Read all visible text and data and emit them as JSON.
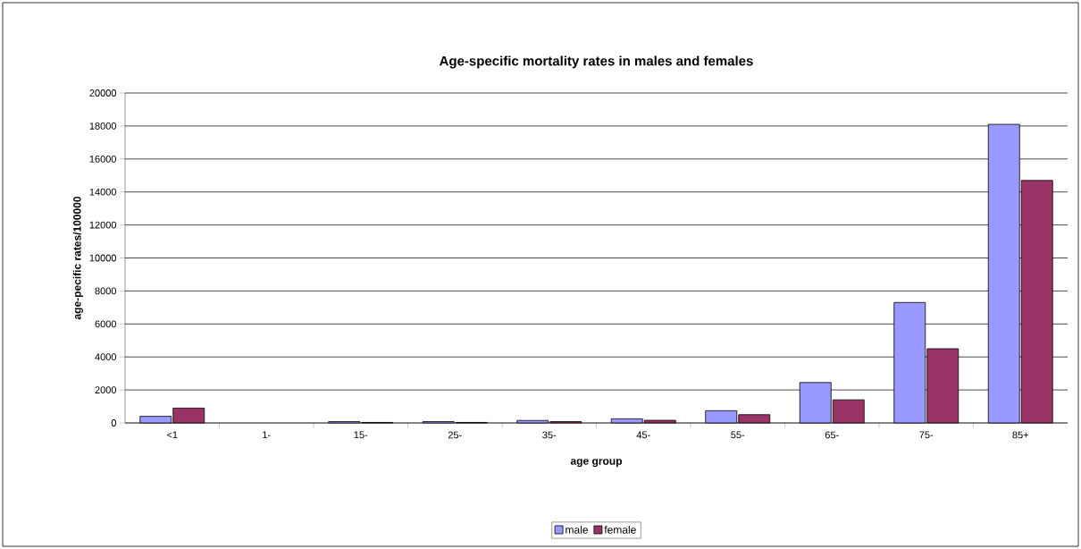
{
  "chart_data": {
    "type": "bar",
    "title": "Age-specific mortality rates in males and females",
    "xlabel": "age group",
    "ylabel": "age-pecific rates/100000",
    "categories": [
      "<1",
      "1-",
      "15-",
      "25-",
      "35-",
      "45-",
      "55-",
      "65-",
      "75-",
      "85+"
    ],
    "series": [
      {
        "name": "male",
        "color": "#9999ff",
        "values": [
          400,
          null,
          80,
          80,
          150,
          250,
          740,
          2450,
          7300,
          18100
        ]
      },
      {
        "name": "female",
        "color": "#993366",
        "values": [
          900,
          null,
          30,
          30,
          80,
          160,
          500,
          1400,
          4500,
          14700
        ]
      }
    ],
    "ylim": [
      0,
      20000
    ],
    "yticks": [
      0,
      2000,
      4000,
      6000,
      8000,
      10000,
      12000,
      14000,
      16000,
      18000,
      20000
    ],
    "grid": "y",
    "legend": "bottom"
  }
}
